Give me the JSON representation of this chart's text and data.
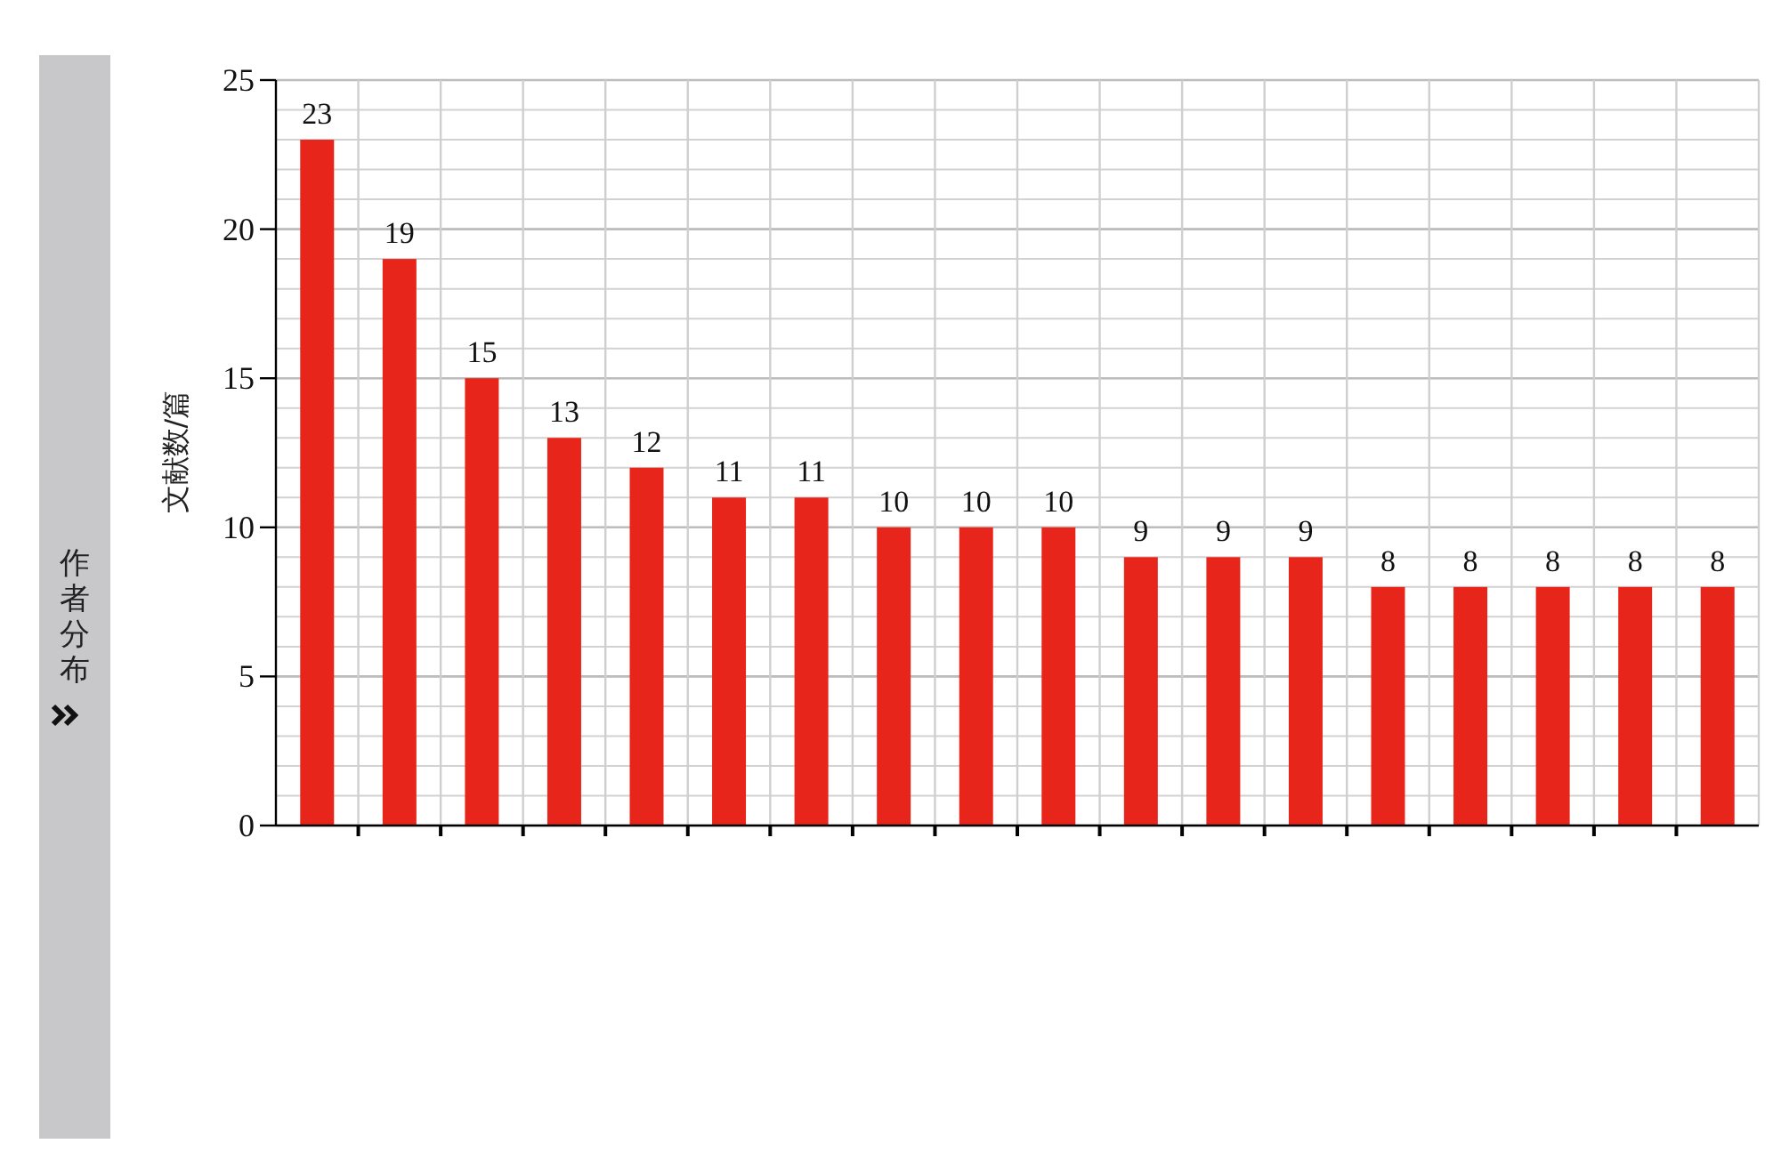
{
  "chart_data": {
    "type": "bar",
    "title": "作者分布",
    "ylabel": "文献数/篇",
    "categories": [
      null,
      null,
      null,
      null,
      null,
      null,
      null,
      null,
      null,
      null,
      null,
      null,
      null,
      null,
      null,
      null,
      null,
      null
    ],
    "values": [
      23,
      19,
      15,
      13,
      12,
      11,
      11,
      10,
      10,
      10,
      9,
      9,
      9,
      8,
      8,
      8,
      8,
      8
    ],
    "color": "#e8251a",
    "ylim": [
      0,
      25
    ],
    "yticks": [
      0,
      5,
      10,
      15,
      20,
      25
    ],
    "grid": true,
    "data_labels": true
  }
}
